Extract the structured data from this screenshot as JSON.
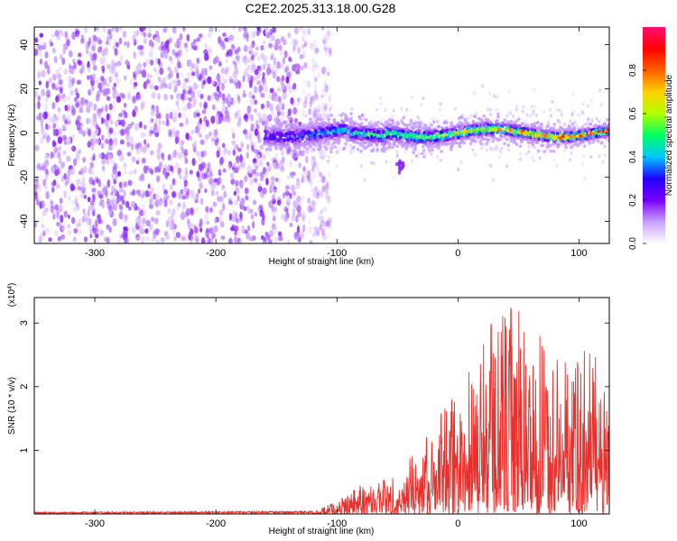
{
  "chart_data": [
    {
      "type": "heatmap",
      "title": "C2E2.2025.313.18.00.G28",
      "xlabel": "Height of straight line (km)",
      "ylabel": "Frequency (Hz)",
      "xlim": [
        -350,
        125
      ],
      "ylim": [
        -50,
        48
      ],
      "xticks": [
        -300,
        -200,
        -100,
        0,
        100
      ],
      "yticks": [
        -40,
        -20,
        0,
        20,
        40
      ],
      "noise_region_x": [
        -350,
        -120
      ],
      "signal_band": {
        "x_start": -160,
        "x_end": 125,
        "center_freq": 0,
        "amplitude_start": 0.2,
        "amplitude_end": 0.9
      },
      "artifact": {
        "x": -48,
        "freq": -15
      },
      "colorbar": {
        "label": "Normalized spectral amplitude",
        "range": [
          0,
          1
        ],
        "ticks": [
          "0.0",
          "0.2",
          "0.4",
          "0.6",
          "0.8"
        ],
        "colors": [
          "#ffffff",
          "#c8a0ff",
          "#7a00ff",
          "#2000ff",
          "#00c8ff",
          "#00ff60",
          "#b0ff00",
          "#ffd000",
          "#ff6000",
          "#ff0000",
          "#ff1070"
        ]
      }
    },
    {
      "type": "line",
      "xlabel": "Height of straight line (km)",
      "ylabel": "SNR (10 * v/v)",
      "yscale_label": "(x10",
      "yscale_exp": "4",
      "yscale_close": ")",
      "xlim": [
        -350,
        125
      ],
      "ylim": [
        0,
        3.4
      ],
      "xticks": [
        -300,
        -200,
        -100,
        0,
        100
      ],
      "yticks": [
        1,
        2,
        3
      ],
      "line_color": "#e8302c",
      "envelope": [
        {
          "x": -350,
          "y": 0.02
        },
        {
          "x": -120,
          "y": 0.03
        },
        {
          "x": -100,
          "y": 0.2
        },
        {
          "x": -80,
          "y": 0.45
        },
        {
          "x": -50,
          "y": 0.6
        },
        {
          "x": -20,
          "y": 1.3
        },
        {
          "x": 0,
          "y": 2.0
        },
        {
          "x": 20,
          "y": 2.6
        },
        {
          "x": 40,
          "y": 3.3
        },
        {
          "x": 60,
          "y": 2.8
        },
        {
          "x": 90,
          "y": 2.3
        },
        {
          "x": 110,
          "y": 2.6
        },
        {
          "x": 125,
          "y": 1.8
        }
      ]
    }
  ]
}
